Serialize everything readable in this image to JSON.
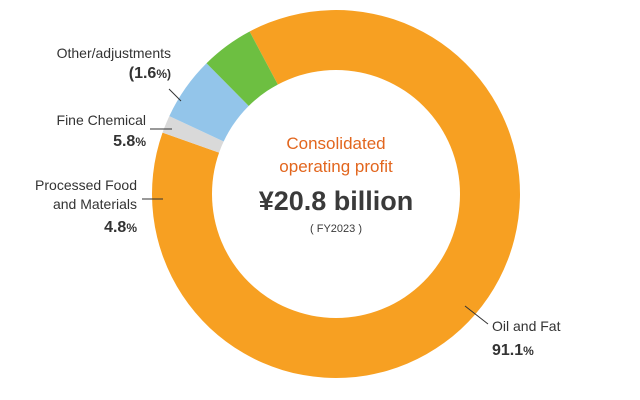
{
  "chart_data": {
    "type": "pie",
    "center": {
      "title_line1": "Consolidated",
      "title_line2": "operating profit",
      "value": "¥20.8 billion",
      "period": "( FY2023 )"
    },
    "segments": [
      {
        "name": "Oil and Fat",
        "value": 91.1,
        "value_label": "91.1",
        "unit": "%",
        "color": "#f7a022"
      },
      {
        "name": "Other/adjustments",
        "value": -1.6,
        "value_label": "(1.6",
        "unit": "%)",
        "color": "#d9d9d9"
      },
      {
        "name": "Fine Chemical",
        "value": 5.8,
        "value_label": "5.8",
        "unit": "%",
        "color": "#93c5ea"
      },
      {
        "name": "Processed Food and Materials",
        "name_lines": [
          "Processed Food",
          "and Materials"
        ],
        "value": 4.8,
        "value_label": "4.8",
        "unit": "%",
        "color": "#6dbf41"
      }
    ]
  }
}
